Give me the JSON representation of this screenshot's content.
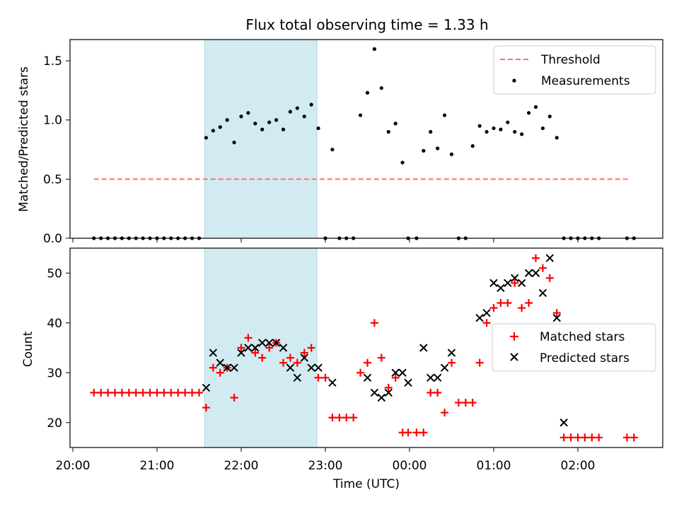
{
  "title": "Flux total observing time = 1.33 h",
  "colors": {
    "threshold": "#ff7070",
    "measurement": "#000000",
    "matched": "#ff0000",
    "predicted": "#000000",
    "span": "#add8e6"
  },
  "chart_data": [
    {
      "type": "scatter",
      "ylabel": "Matched/Predicted stars",
      "ylim": [
        0,
        1.68
      ],
      "yticks": [
        0.0,
        0.5,
        1.0,
        1.5
      ],
      "ytick_labels": [
        "0.0",
        "0.5",
        "1.0",
        "1.5"
      ],
      "xlim": [
        "20:00",
        "03:00"
      ],
      "legend_position": "upper right",
      "shaded_span": [
        "21:34",
        "22:54"
      ],
      "threshold": {
        "name": "Threshold",
        "value": 0.5,
        "x_range": [
          "20:15",
          "02:37"
        ]
      },
      "series": [
        {
          "name": "Measurements",
          "x": [
            "20:15",
            "20:20",
            "20:25",
            "20:30",
            "20:35",
            "20:40",
            "20:45",
            "20:50",
            "20:55",
            "21:00",
            "21:05",
            "21:10",
            "21:15",
            "21:20",
            "21:25",
            "21:30",
            "21:35",
            "21:40",
            "21:45",
            "21:50",
            "21:55",
            "22:00",
            "22:05",
            "22:10",
            "22:15",
            "22:20",
            "22:25",
            "22:30",
            "22:35",
            "22:40",
            "22:45",
            "22:50",
            "22:55",
            "23:00",
            "23:05",
            "23:10",
            "23:15",
            "23:20",
            "23:25",
            "23:30",
            "23:35",
            "23:40",
            "23:45",
            "23:50",
            "23:55",
            "23:59",
            "00:05",
            "00:10",
            "00:15",
            "00:20",
            "00:25",
            "00:30",
            "00:35",
            "00:40",
            "00:45",
            "00:50",
            "00:55",
            "01:00",
            "01:05",
            "01:10",
            "01:15",
            "01:20",
            "01:25",
            "01:30",
            "01:35",
            "01:40",
            "01:45",
            "01:50",
            "01:55",
            "02:00",
            "02:05",
            "02:10",
            "02:15",
            "02:35",
            "02:40"
          ],
          "y": [
            0,
            0,
            0,
            0,
            0,
            0,
            0,
            0,
            0,
            0,
            0,
            0,
            0,
            0,
            0,
            0,
            0.85,
            0.91,
            0.94,
            1.0,
            0.81,
            1.03,
            1.06,
            0.97,
            0.92,
            0.98,
            1.0,
            0.92,
            1.07,
            1.1,
            1.03,
            1.13,
            0.93,
            0,
            0.75,
            0,
            0,
            0,
            1.04,
            1.23,
            1.6,
            1.27,
            0.9,
            0.97,
            0.64,
            0,
            0,
            0.74,
            0.9,
            0.76,
            1.04,
            0.71,
            0,
            0,
            0.78,
            0.95,
            0.9,
            0.93,
            0.92,
            0.98,
            0.9,
            0.88,
            1.06,
            1.11,
            0.93,
            1.03,
            0.85,
            0,
            0,
            0,
            0,
            0,
            0,
            0,
            0
          ]
        }
      ]
    },
    {
      "type": "scatter",
      "xlabel": "Time (UTC)",
      "ylabel": "Count",
      "ylim": [
        15,
        55
      ],
      "yticks": [
        20,
        30,
        40,
        50
      ],
      "ytick_labels": [
        "20",
        "30",
        "40",
        "50"
      ],
      "xlim": [
        "20:00",
        "03:00"
      ],
      "xticks": [
        "20:00",
        "21:00",
        "22:00",
        "23:00",
        "00:00",
        "01:00",
        "02:00"
      ],
      "legend_position": "center right",
      "shaded_span": [
        "21:34",
        "22:54"
      ],
      "series": [
        {
          "name": "Matched stars",
          "x": [
            "20:15",
            "20:20",
            "20:25",
            "20:30",
            "20:35",
            "20:40",
            "20:45",
            "20:50",
            "20:55",
            "21:00",
            "21:05",
            "21:10",
            "21:15",
            "21:20",
            "21:25",
            "21:30",
            "21:35",
            "21:40",
            "21:45",
            "21:50",
            "21:55",
            "22:00",
            "22:05",
            "22:10",
            "22:15",
            "22:20",
            "22:25",
            "22:30",
            "22:35",
            "22:40",
            "22:45",
            "22:50",
            "22:55",
            "23:00",
            "23:05",
            "23:10",
            "23:15",
            "23:20",
            "23:25",
            "23:30",
            "23:35",
            "23:40",
            "23:45",
            "23:50",
            "23:55",
            "23:59",
            "00:05",
            "00:10",
            "00:15",
            "00:20",
            "00:25",
            "00:30",
            "00:35",
            "00:40",
            "00:45",
            "00:50",
            "00:55",
            "01:00",
            "01:05",
            "01:10",
            "01:15",
            "01:20",
            "01:25",
            "01:30",
            "01:35",
            "01:40",
            "01:45",
            "01:50",
            "01:55",
            "02:00",
            "02:05",
            "02:10",
            "02:15",
            "02:35",
            "02:40"
          ],
          "y": [
            26,
            26,
            26,
            26,
            26,
            26,
            26,
            26,
            26,
            26,
            26,
            26,
            26,
            26,
            26,
            26,
            23,
            31,
            30,
            31,
            25,
            35,
            37,
            34,
            33,
            35,
            36,
            32,
            33,
            32,
            34,
            35,
            29,
            29,
            21,
            21,
            21,
            21,
            30,
            32,
            40,
            33,
            27,
            29,
            18,
            18,
            18,
            18,
            26,
            26,
            22,
            32,
            24,
            24,
            24,
            32,
            40,
            43,
            44,
            44,
            48,
            43,
            44,
            53,
            51,
            49,
            42,
            17,
            17,
            17,
            17,
            17,
            17,
            17,
            17
          ]
        },
        {
          "name": "Predicted stars",
          "x": [
            "21:35",
            "21:40",
            "21:45",
            "21:50",
            "21:55",
            "22:00",
            "22:05",
            "22:10",
            "22:15",
            "22:20",
            "22:25",
            "22:30",
            "22:35",
            "22:40",
            "22:45",
            "22:50",
            "22:55",
            "23:05",
            "23:30",
            "23:35",
            "23:40",
            "23:45",
            "23:50",
            "23:55",
            "23:59",
            "00:10",
            "00:15",
            "00:20",
            "00:25",
            "00:30",
            "00:50",
            "00:55",
            "01:00",
            "01:05",
            "01:10",
            "01:15",
            "01:20",
            "01:25",
            "01:30",
            "01:35",
            "01:40",
            "01:45",
            "01:50"
          ],
          "y": [
            27,
            34,
            32,
            31,
            31,
            34,
            35,
            35,
            36,
            36,
            36,
            35,
            31,
            29,
            33,
            31,
            31,
            28,
            29,
            26,
            25,
            26,
            30,
            30,
            28,
            35,
            29,
            29,
            31,
            34,
            41,
            42,
            48,
            47,
            48,
            49,
            48,
            50,
            50,
            46,
            53,
            41,
            20
          ]
        }
      ]
    }
  ]
}
